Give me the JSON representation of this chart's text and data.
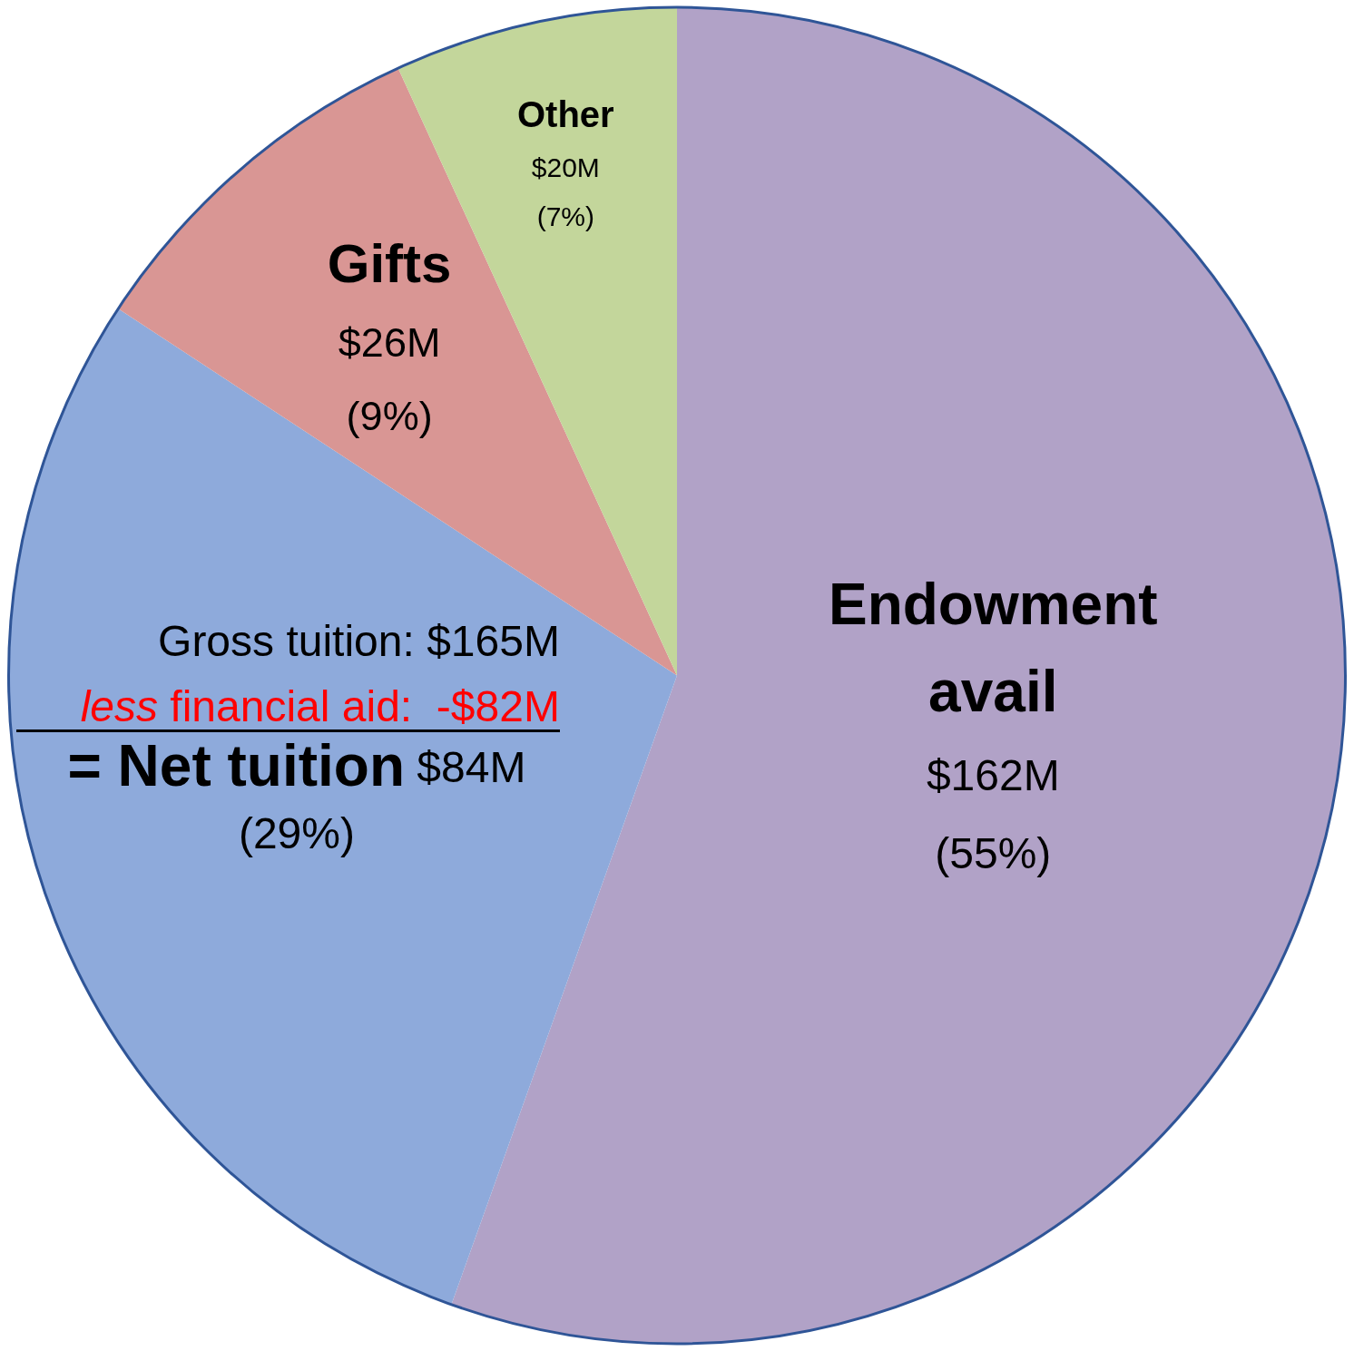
{
  "chart_data": {
    "type": "pie",
    "categories": [
      "Endowment avail",
      "= Net tuition",
      "Gifts",
      "Other"
    ],
    "values": [
      162,
      84,
      26,
      20
    ],
    "colors": [
      "#b1a2c7",
      "#8eaadb",
      "#d99694",
      "#c3d69b"
    ],
    "value_labels": [
      "$162M",
      "$84M",
      "$26M",
      "$20M"
    ],
    "annotations": [
      "Gross tuition: $165M",
      "less financial aid:  -$82M",
      {
        "text": "(55%)",
        "x": "Endowment avail"
      },
      {
        "text": "(29%)",
        "x": "= Net tuition"
      },
      {
        "text": "(9%)",
        "x": "Gifts"
      },
      {
        "text": "(7%)",
        "x": "Other"
      }
    ],
    "legend": false
  }
}
